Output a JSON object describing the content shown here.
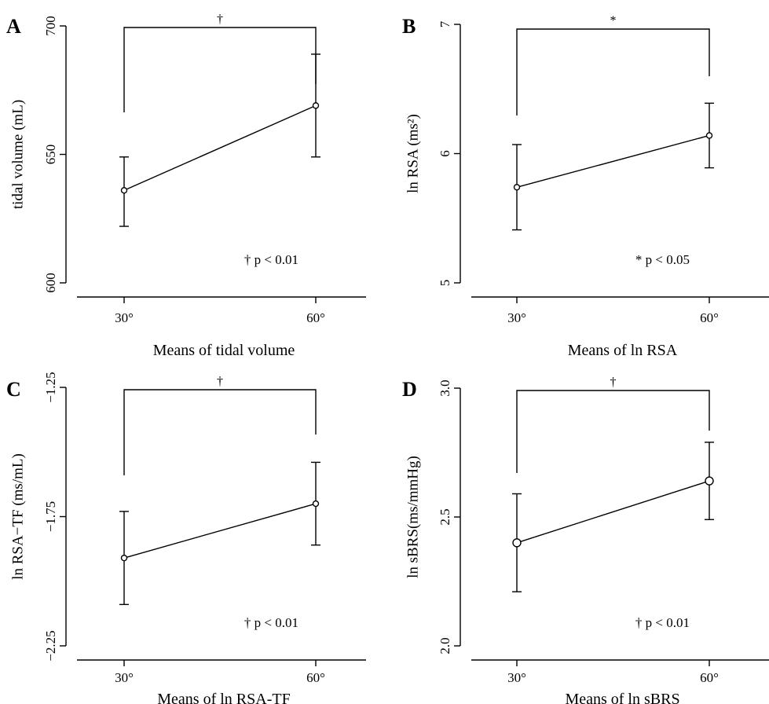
{
  "chart_data": [
    {
      "panel": "A",
      "type": "line",
      "categories": [
        "30°",
        "60°"
      ],
      "values": [
        636,
        669
      ],
      "error_low": [
        622,
        649
      ],
      "error_high": [
        649,
        689
      ],
      "ylim": [
        600,
        700
      ],
      "yticks": [
        600,
        650,
        700
      ],
      "ytick_labels": [
        "600",
        "650",
        "700"
      ],
      "ylabel": "tidal volume (mL)",
      "xlabel": "Means of tidal volume",
      "significance_marker": "†",
      "annotation": "† p < 0.01"
    },
    {
      "panel": "B",
      "type": "line",
      "categories": [
        "30°",
        "60°"
      ],
      "values": [
        5.74,
        6.14
      ],
      "error_low": [
        5.41,
        5.89
      ],
      "error_high": [
        6.07,
        6.39
      ],
      "ylim": [
        5,
        7
      ],
      "yticks": [
        5,
        6,
        7
      ],
      "ytick_labels": [
        "5",
        "6",
        "7"
      ],
      "ylabel": "ln RSA (ms²)",
      "xlabel": "Means of ln RSA",
      "significance_marker": "*",
      "annotation": "* p < 0.05"
    },
    {
      "panel": "C",
      "type": "line",
      "categories": [
        "30°",
        "60°"
      ],
      "values": [
        -1.91,
        -1.7
      ],
      "error_low": [
        -2.09,
        -1.86
      ],
      "error_high": [
        -1.73,
        -1.54
      ],
      "ylim": [
        -2.25,
        -1.25
      ],
      "yticks": [
        -2.25,
        -1.75,
        -1.25
      ],
      "ytick_labels": [
        "−2.25",
        "−1.75",
        "−1.25"
      ],
      "ylabel": "ln RSA−TF (ms/mL)",
      "xlabel": "Means of ln RSA-TF",
      "significance_marker": "†",
      "annotation": "† p < 0.01"
    },
    {
      "panel": "D",
      "type": "line",
      "categories": [
        "30°",
        "60°"
      ],
      "values": [
        2.4,
        2.64
      ],
      "error_low": [
        2.21,
        2.49
      ],
      "error_high": [
        2.59,
        2.79
      ],
      "ylim": [
        2.0,
        3.0
      ],
      "yticks": [
        2.0,
        2.5,
        3.0
      ],
      "ytick_labels": [
        "2.0",
        "2.5",
        "3.0"
      ],
      "ylabel": "ln sBRS(ms/mmHg)",
      "xlabel": "Means of ln sBRS",
      "significance_marker": "†",
      "annotation": "† p < 0.01"
    }
  ]
}
